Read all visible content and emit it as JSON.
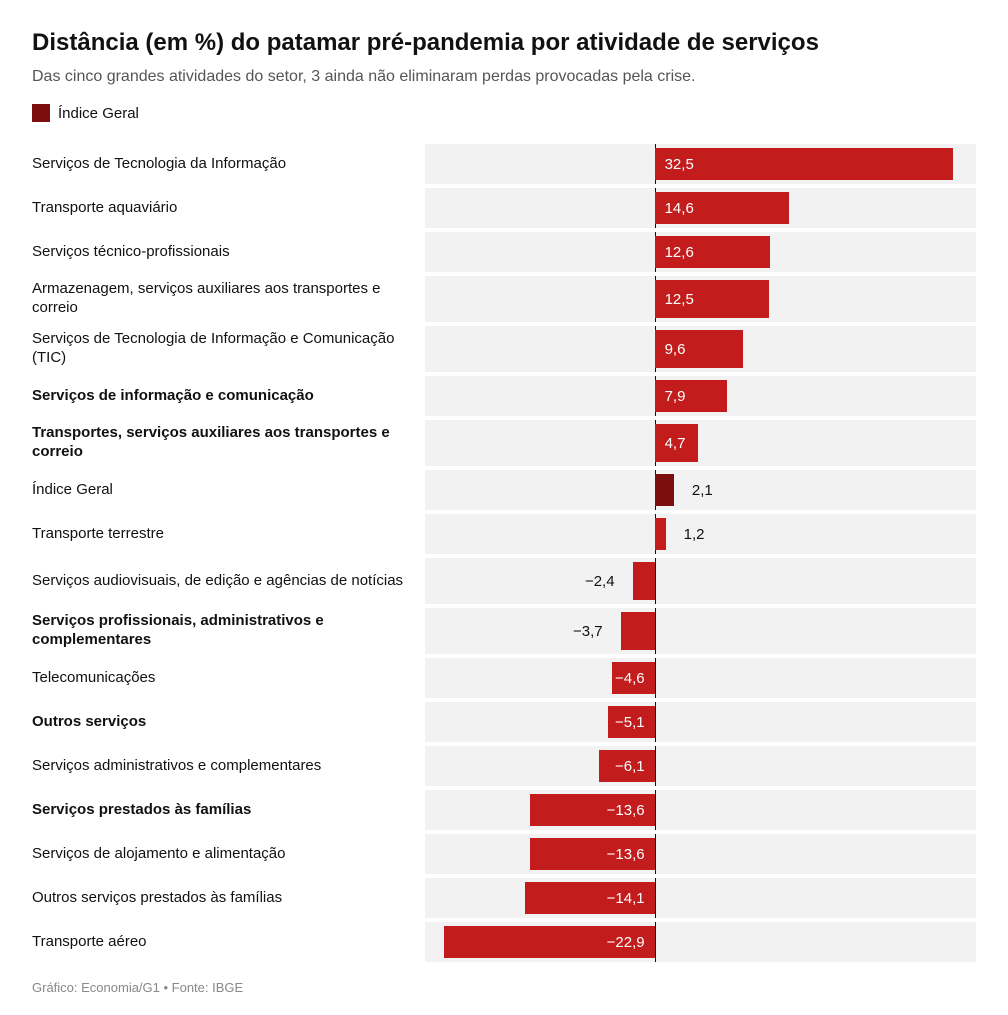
{
  "title": "Distância (em %) do patamar pré-pandemia por atividade de serviços",
  "subtitle": "Das cinco grandes atividades do setor, 3 ainda não eliminaram perdas provocadas pela crise.",
  "legend": {
    "label": "Índice Geral",
    "color": "#7d0e0e"
  },
  "footer": "Gráfico: Economia/G1 • Fonte: IBGE",
  "chart": {
    "type": "bar",
    "orientation": "horizontal",
    "background_color": "#ffffff",
    "row_bg_color": "#f2f2f2",
    "bar_color": "#c21c1c",
    "highlight_color": "#7d0e0e",
    "axis_color": "#111111",
    "label_fontsize": 15,
    "value_fontsize": 15,
    "xlim": [
      -25,
      35
    ],
    "zero_position_pct": 41.67,
    "unit_pct": 1.6667,
    "rows": [
      {
        "label": "Serviços de Tecnologia da Informação",
        "value": 32.5,
        "display": "32,5",
        "bold": false,
        "highlight": false,
        "tall": false,
        "inside": true
      },
      {
        "label": "Transporte aquaviário",
        "value": 14.6,
        "display": "14,6",
        "bold": false,
        "highlight": false,
        "tall": false,
        "inside": true
      },
      {
        "label": "Serviços técnico-profissionais",
        "value": 12.6,
        "display": "12,6",
        "bold": false,
        "highlight": false,
        "tall": false,
        "inside": true
      },
      {
        "label": "Armazenagem, serviços auxiliares aos transportes e correio",
        "value": 12.5,
        "display": "12,5",
        "bold": false,
        "highlight": false,
        "tall": true,
        "inside": true
      },
      {
        "label": "Serviços de Tecnologia de Informação e Comunicação (TIC)",
        "value": 9.6,
        "display": "9,6",
        "bold": false,
        "highlight": false,
        "tall": true,
        "inside": true
      },
      {
        "label": "Serviços de informação e comunicação",
        "value": 7.9,
        "display": "7,9",
        "bold": true,
        "highlight": false,
        "tall": false,
        "inside": true
      },
      {
        "label": "Transportes, serviços auxiliares aos transportes e correio",
        "value": 4.7,
        "display": "4,7",
        "bold": true,
        "highlight": false,
        "tall": true,
        "inside": true
      },
      {
        "label": "Índice Geral",
        "value": 2.1,
        "display": "2,1",
        "bold": false,
        "highlight": true,
        "tall": false,
        "inside": false
      },
      {
        "label": "Transporte terrestre",
        "value": 1.2,
        "display": "1,2",
        "bold": false,
        "highlight": false,
        "tall": false,
        "inside": false
      },
      {
        "label": "Serviços audiovisuais, de edição e agências de notícias",
        "value": -2.4,
        "display": "−2,4",
        "bold": false,
        "highlight": false,
        "tall": true,
        "inside": false
      },
      {
        "label": "Serviços profissionais, administrativos e complementares",
        "value": -3.7,
        "display": "−3,7",
        "bold": true,
        "highlight": false,
        "tall": true,
        "inside": false
      },
      {
        "label": "Telecomunicações",
        "value": -4.6,
        "display": "−4,6",
        "bold": false,
        "highlight": false,
        "tall": false,
        "inside": true
      },
      {
        "label": "Outros serviços",
        "value": -5.1,
        "display": "−5,1",
        "bold": true,
        "highlight": false,
        "tall": false,
        "inside": true
      },
      {
        "label": "Serviços administrativos e complementares",
        "value": -6.1,
        "display": "−6,1",
        "bold": false,
        "highlight": false,
        "tall": false,
        "inside": true
      },
      {
        "label": "Serviços prestados às famílias",
        "value": -13.6,
        "display": "−13,6",
        "bold": true,
        "highlight": false,
        "tall": false,
        "inside": true
      },
      {
        "label": "Serviços de alojamento e alimentação",
        "value": -13.6,
        "display": "−13,6",
        "bold": false,
        "highlight": false,
        "tall": false,
        "inside": true
      },
      {
        "label": "Outros serviços prestados às famílias",
        "value": -14.1,
        "display": "−14,1",
        "bold": false,
        "highlight": false,
        "tall": false,
        "inside": true
      },
      {
        "label": "Transporte aéreo",
        "value": -22.9,
        "display": "−22,9",
        "bold": false,
        "highlight": false,
        "tall": false,
        "inside": true
      }
    ]
  }
}
